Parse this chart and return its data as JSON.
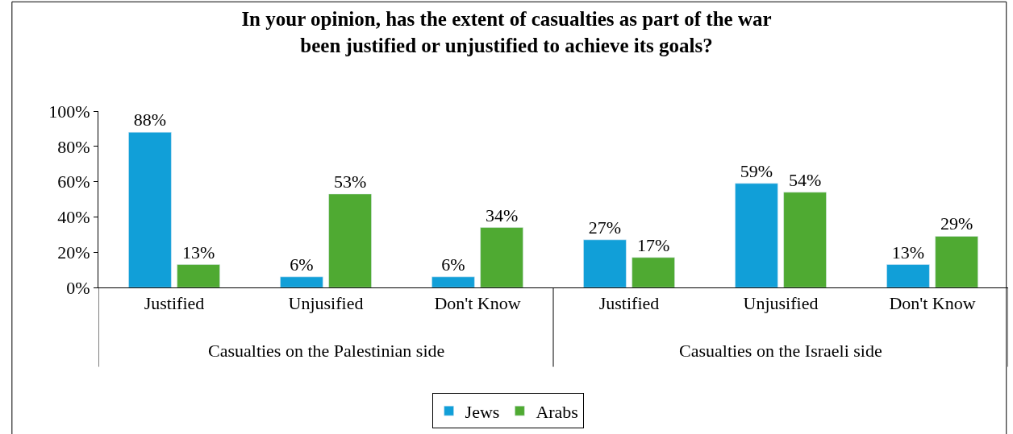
{
  "chart_data": {
    "type": "bar",
    "title": "In your opinion, has the extent of casualties as part of the war been justified or unjustified to achieve its goals?",
    "categories": [
      "Justified",
      "Unjusified",
      "Don't Know",
      "Justified",
      "Unjusified",
      "Don't Know"
    ],
    "series": [
      {
        "name": "Jews",
        "color": "#119fd8",
        "values": [
          88,
          6,
          6,
          27,
          59,
          13
        ],
        "value_labels": [
          "88%",
          "6%",
          "6%",
          "27%",
          "59%",
          "13%"
        ]
      },
      {
        "name": "Arabs",
        "color": "#4faa32",
        "values": [
          13,
          53,
          34,
          17,
          54,
          29
        ],
        "value_labels": [
          "13%",
          "53%",
          "34%",
          "17%",
          "54%",
          "29%"
        ]
      }
    ],
    "annotations": [
      "Casualties on the Palestinian side",
      "Casualties on the Israeli side"
    ],
    "ylim": [
      0,
      100
    ],
    "yticks": [
      {
        "value": 0,
        "label": "0%"
      },
      {
        "value": 20,
        "label": "20%"
      },
      {
        "value": 40,
        "label": "40%"
      },
      {
        "value": 60,
        "label": "60%"
      },
      {
        "value": 80,
        "label": "80%"
      },
      {
        "value": 100,
        "label": "100%"
      }
    ],
    "grid": false,
    "legend": "bottom"
  }
}
